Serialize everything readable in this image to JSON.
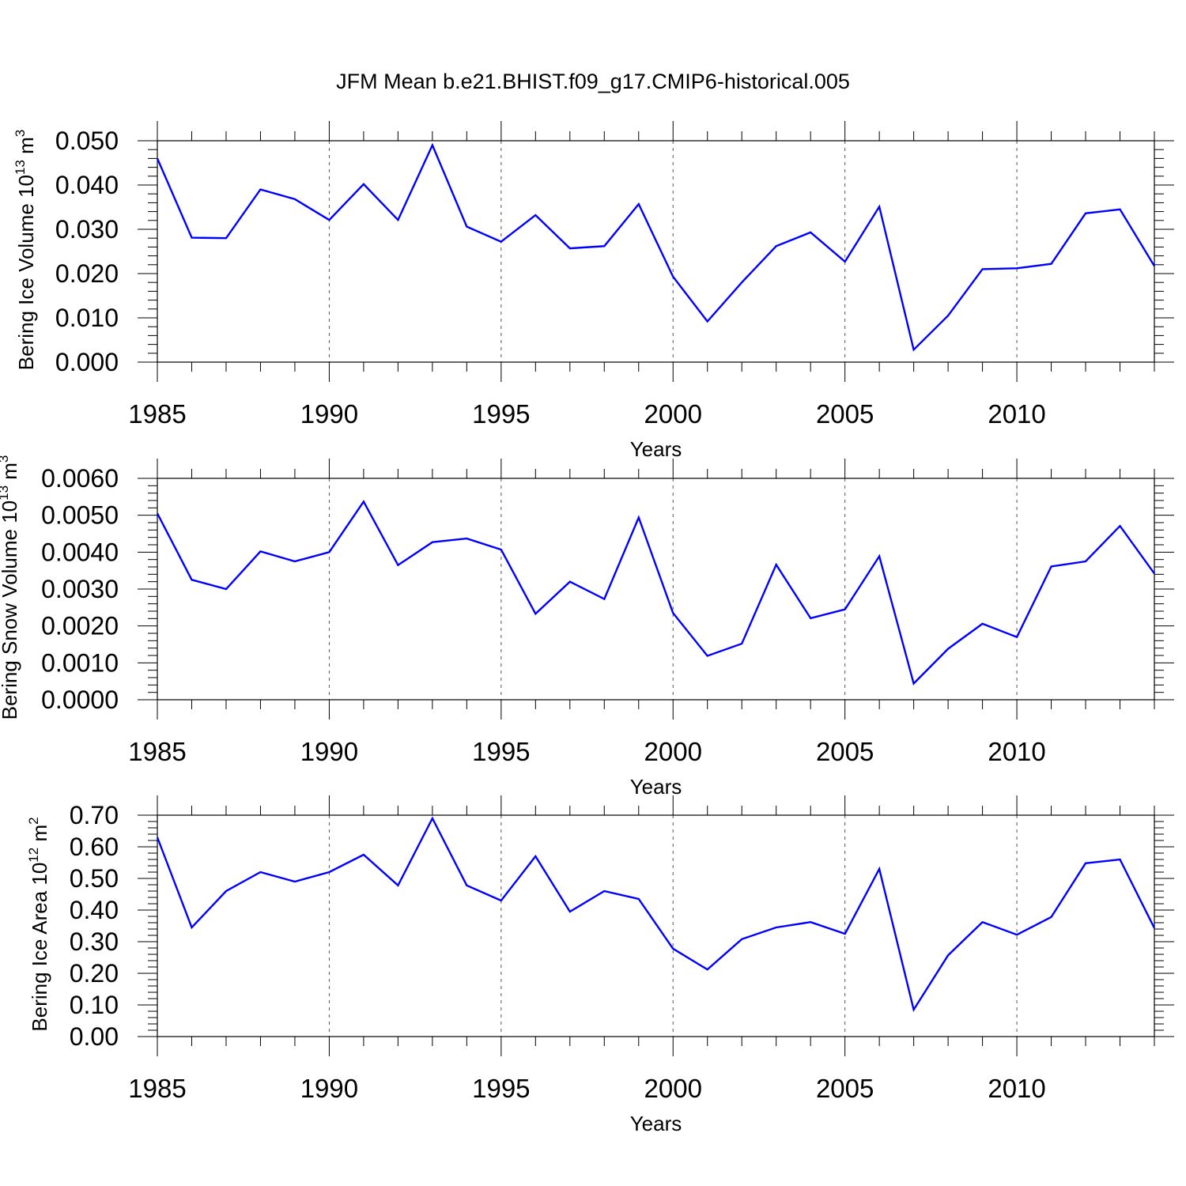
{
  "figure_title": "JFM Mean b.e21.BHIST.f09_g17.CMIP6-historical.005",
  "line_color": "#0000ff",
  "chart_data": [
    {
      "type": "line",
      "title": "JFM Mean b.e21.BHIST.f09_g17.CMIP6-historical.005",
      "xlabel": "Years",
      "ylabel": {
        "base": "Bering Ice Volume 10",
        "sup1": "13",
        "mid": " m",
        "sup2": "3"
      },
      "xlim": [
        1985,
        2014
      ],
      "ylim": [
        0,
        0.05
      ],
      "x_ticks": [
        1985,
        1990,
        1995,
        2000,
        2005,
        2010
      ],
      "x_tick_labels": [
        "1985",
        "1990",
        "1995",
        "2000",
        "2005",
        "2010"
      ],
      "y_ticks": [
        0,
        0.01,
        0.02,
        0.03,
        0.04,
        0.05
      ],
      "y_tick_labels": [
        "0.000",
        "0.010",
        "0.020",
        "0.030",
        "0.040",
        "0.050"
      ],
      "x": [
        1985,
        1986,
        1987,
        1988,
        1989,
        1990,
        1991,
        1992,
        1993,
        1994,
        1995,
        1996,
        1997,
        1998,
        1999,
        2000,
        2001,
        2002,
        2003,
        2004,
        2005,
        2006,
        2007,
        2008,
        2009,
        2010,
        2011,
        2012,
        2013,
        2014
      ],
      "series": [
        {
          "name": "Bering Ice Volume",
          "values": [
            0.046,
            0.0281,
            0.028,
            0.039,
            0.0368,
            0.0321,
            0.0402,
            0.0321,
            0.049,
            0.0306,
            0.0272,
            0.0332,
            0.0257,
            0.0262,
            0.0357,
            0.0193,
            0.0092,
            0.018,
            0.0262,
            0.0293,
            0.0227,
            0.0351,
            0.0028,
            0.0105,
            0.021,
            0.0212,
            0.0222,
            0.0336,
            0.0345,
            0.0217
          ]
        }
      ]
    },
    {
      "type": "line",
      "xlabel": "Years",
      "ylabel": {
        "base": "Bering Snow Volume 10",
        "sup1": "13",
        "mid": " m",
        "sup2": "3"
      },
      "xlim": [
        1985,
        2014
      ],
      "ylim": [
        0,
        0.006
      ],
      "x_ticks": [
        1985,
        1990,
        1995,
        2000,
        2005,
        2010
      ],
      "x_tick_labels": [
        "1985",
        "1990",
        "1995",
        "2000",
        "2005",
        "2010"
      ],
      "y_ticks": [
        0,
        0.001,
        0.002,
        0.003,
        0.004,
        0.005,
        0.006
      ],
      "y_tick_labels": [
        "0.0000",
        "0.0010",
        "0.0020",
        "0.0030",
        "0.0040",
        "0.0050",
        "0.0060"
      ],
      "x": [
        1985,
        1986,
        1987,
        1988,
        1989,
        1990,
        1991,
        1992,
        1993,
        1994,
        1995,
        1996,
        1997,
        1998,
        1999,
        2000,
        2001,
        2002,
        2003,
        2004,
        2005,
        2006,
        2007,
        2008,
        2009,
        2010,
        2011,
        2012,
        2013,
        2014
      ],
      "series": [
        {
          "name": "Bering Snow Volume",
          "values": [
            0.00505,
            0.00325,
            0.003,
            0.00402,
            0.00375,
            0.004,
            0.00537,
            0.00365,
            0.00427,
            0.00437,
            0.00407,
            0.00233,
            0.0032,
            0.00273,
            0.00494,
            0.00235,
            0.00119,
            0.00152,
            0.00366,
            0.00221,
            0.00245,
            0.00389,
            0.00044,
            0.00138,
            0.00206,
            0.0017,
            0.00361,
            0.00375,
            0.00471,
            0.00342
          ]
        }
      ]
    },
    {
      "type": "line",
      "xlabel": "Years",
      "ylabel": {
        "base": "Bering Ice Area 10",
        "sup1": "12",
        "mid": " m",
        "sup2": "2"
      },
      "xlim": [
        1985,
        2014
      ],
      "ylim": [
        0,
        0.7
      ],
      "x_ticks": [
        1985,
        1990,
        1995,
        2000,
        2005,
        2010
      ],
      "x_tick_labels": [
        "1985",
        "1990",
        "1995",
        "2000",
        "2005",
        "2010"
      ],
      "y_ticks": [
        0,
        0.1,
        0.2,
        0.3,
        0.4,
        0.5,
        0.6,
        0.7
      ],
      "y_tick_labels": [
        "0.00",
        "0.10",
        "0.20",
        "0.30",
        "0.40",
        "0.50",
        "0.60",
        "0.70"
      ],
      "x": [
        1985,
        1986,
        1987,
        1988,
        1989,
        1990,
        1991,
        1992,
        1993,
        1994,
        1995,
        1996,
        1997,
        1998,
        1999,
        2000,
        2001,
        2002,
        2003,
        2004,
        2005,
        2006,
        2007,
        2008,
        2009,
        2010,
        2011,
        2012,
        2013,
        2014
      ],
      "series": [
        {
          "name": "Bering Ice Area",
          "values": [
            0.63,
            0.345,
            0.46,
            0.52,
            0.49,
            0.52,
            0.575,
            0.478,
            0.69,
            0.478,
            0.43,
            0.57,
            0.395,
            0.46,
            0.435,
            0.278,
            0.212,
            0.308,
            0.345,
            0.362,
            0.325,
            0.53,
            0.085,
            0.257,
            0.362,
            0.322,
            0.378,
            0.548,
            0.56,
            0.343
          ]
        }
      ]
    }
  ]
}
